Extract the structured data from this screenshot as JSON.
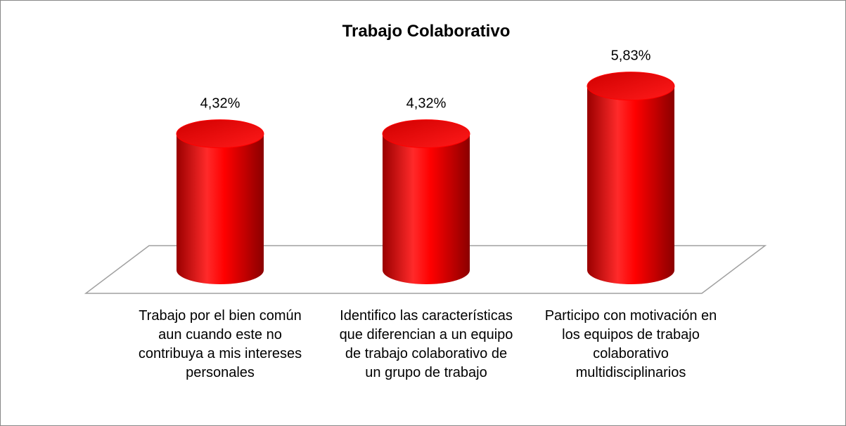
{
  "chart_data": {
    "type": "bar",
    "title": "Trabajo Colaborativo",
    "categories": [
      "Trabajo por el bien común aun cuando este no contribuya a mis intereses personales",
      "Identifico las características que diferencian a un equipo de trabajo colaborativo de un grupo de trabajo",
      "Participo con motivación en los equipos de trabajo colaborativo multidisciplinarios"
    ],
    "values": [
      4.32,
      4.32,
      5.83
    ],
    "value_labels": [
      "4,32%",
      "4,32%",
      "5,83%"
    ],
    "color": "#ff0000"
  }
}
